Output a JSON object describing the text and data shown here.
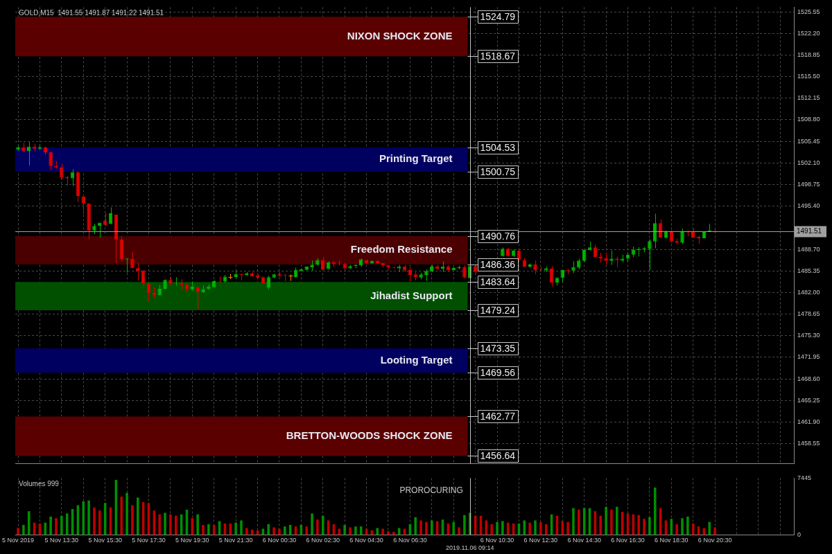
{
  "chart_data": [
    {
      "type": "candlestick",
      "title": "GOLD,M15  1491.55 1491.87 1491.22 1491.51",
      "categories": [
        "5 Nov 2019",
        null,
        null,
        null,
        null,
        null,
        null,
        null,
        "5 Nov 13:30",
        null,
        null,
        null,
        null,
        null,
        null,
        null,
        "5 Nov 15:30",
        null,
        null,
        null,
        null,
        null,
        null,
        null,
        "5 Nov 17:30",
        null,
        null,
        null,
        null,
        null,
        null,
        null,
        "5 Nov 19:30",
        null,
        null,
        null,
        null,
        null,
        null,
        null,
        "5 Nov 21:30",
        null,
        null,
        null,
        null,
        null,
        null,
        null,
        "6 Nov 00:30",
        null,
        null,
        null,
        null,
        null,
        null,
        null,
        "6 Nov 02:30",
        null,
        null,
        null,
        null,
        null,
        null,
        null,
        "6 Nov 04:30",
        null,
        null,
        null,
        null,
        null,
        null,
        null,
        "6 Nov 06:30",
        null,
        null,
        null,
        null,
        null,
        null,
        null,
        null,
        null,
        null,
        "2019.11.06 09:14",
        null,
        null,
        null,
        null,
        "6 Nov 10:30",
        null,
        null,
        null,
        null,
        null,
        null,
        null,
        "6 Nov 12:30",
        null,
        null,
        null,
        null,
        null,
        null,
        null,
        "6 Nov 14:30",
        null,
        null,
        null,
        null,
        null,
        null,
        null,
        "6 Nov 16:30",
        null,
        null,
        null,
        null,
        null,
        null,
        null,
        "6 Nov 18:30",
        null,
        null,
        null,
        null,
        null,
        null,
        null,
        "6 Nov 20:30",
        null,
        null,
        null,
        null,
        null,
        null,
        null,
        null,
        null,
        null,
        null,
        null,
        null,
        null
      ],
      "ohlc": [
        [
          1504.14,
          1504.7,
          1504.0,
          1504.56
        ],
        [
          1504.52,
          1505.25,
          1503.76,
          1503.9
        ],
        [
          1503.9,
          1505.35,
          1501.7,
          1504.63
        ],
        [
          1504.63,
          1505.08,
          1503.87,
          1504.32
        ],
        [
          1504.32,
          1504.97,
          1504.11,
          1504.52
        ],
        [
          1504.52,
          1504.66,
          1503.35,
          1503.76
        ],
        [
          1503.8,
          1503.8,
          1501.01,
          1501.63
        ],
        [
          1501.63,
          1502.39,
          1501.21,
          1501.42
        ],
        [
          1501.42,
          1501.97,
          1499.56,
          1499.83
        ],
        [
          1499.9,
          1500.08,
          1498.59,
          1499.73
        ],
        [
          1499.73,
          1501.11,
          1498.52,
          1500.7
        ],
        [
          1500.7,
          1500.77,
          1496.01,
          1496.97
        ],
        [
          1496.87,
          1496.87,
          1494.21,
          1495.83
        ],
        [
          1495.83,
          1495.83,
          1490.25,
          1491.63
        ],
        [
          1491.63,
          1492.66,
          1491.04,
          1492.32
        ],
        [
          1492.32,
          1492.83,
          1490.52,
          1492.83
        ],
        [
          1493.14,
          1494.39,
          1492.32,
          1492.49
        ],
        [
          1492.63,
          1495.21,
          1492.63,
          1494.28
        ],
        [
          1494.08,
          1494.08,
          1486.59,
          1490.25
        ],
        [
          1490.25,
          1490.77,
          1486.8,
          1487.14
        ],
        [
          1487.14,
          1487.28,
          1485.08,
          1487.28
        ],
        [
          1487.25,
          1488.32,
          1485.77,
          1485.77
        ],
        [
          1485.77,
          1486.63,
          1483.87,
          1485.35
        ],
        [
          1485.42,
          1485.49,
          1483.08,
          1483.42
        ],
        [
          1483.42,
          1483.42,
          1480.59,
          1481.97
        ],
        [
          1481.97,
          1482.8,
          1481.11,
          1481.56
        ],
        [
          1481.56,
          1483.15,
          1481.56,
          1482.59
        ],
        [
          1482.59,
          1484.04,
          1482.49,
          1483.94
        ],
        [
          1483.94,
          1484.45,
          1483.01,
          1483.42
        ],
        [
          1483.35,
          1484.39,
          1483.08,
          1483.42
        ],
        [
          1483.42,
          1484.04,
          1482.32,
          1483.18
        ],
        [
          1483.21,
          1483.42,
          1482.04,
          1482.49
        ],
        [
          1482.45,
          1483.7,
          1482.32,
          1482.9
        ],
        [
          1482.83,
          1482.9,
          1479.45,
          1482.08
        ],
        [
          1482.01,
          1483.11,
          1481.94,
          1482.52
        ],
        [
          1482.52,
          1483.25,
          1482.42,
          1482.94
        ],
        [
          1482.83,
          1483.87,
          1482.83,
          1483.76
        ],
        [
          1483.76,
          1484.46,
          1483.49,
          1483.7
        ],
        [
          1483.7,
          1484.73,
          1483.49,
          1484.46
        ],
        [
          1484.46,
          1484.87,
          1484.08,
          1484.46
        ],
        [
          1484.42,
          1485.42,
          1484.21,
          1484.87
        ],
        [
          1484.87,
          1484.87,
          1483.87,
          1484.73
        ],
        [
          1484.73,
          1485.18,
          1484.56,
          1485.01
        ],
        [
          1485.01,
          1485.18,
          1484.49,
          1484.49
        ],
        [
          1484.63,
          1484.8,
          1484.21,
          1484.32
        ],
        [
          1484.39,
          1484.46,
          1483.39,
          1483.39
        ],
        [
          1482.73,
          1484.63,
          1482.49,
          1484.39
        ],
        [
          1484.32,
          1484.9,
          1484.21,
          1484.8
        ],
        [
          1484.8,
          1485.25,
          1484.39,
          1484.56
        ],
        [
          1484.7,
          1484.9,
          1483.76,
          1484.63
        ],
        [
          1484.66,
          1484.8,
          1483.8,
          1484.66
        ],
        [
          1484.42,
          1485.87,
          1484.32,
          1485.52
        ],
        [
          1485.35,
          1485.76,
          1485.25,
          1485.63
        ],
        [
          1485.52,
          1486.01,
          1485.42,
          1486.01
        ],
        [
          1485.9,
          1486.97,
          1485.35,
          1486.32
        ],
        [
          1486.28,
          1487.32,
          1486.18,
          1487.04
        ],
        [
          1487.04,
          1487.52,
          1485.52,
          1485.59
        ],
        [
          1485.66,
          1486.83,
          1485.52,
          1486.73
        ],
        [
          1486.73,
          1486.9,
          1485.94,
          1486.39
        ],
        [
          1486.63,
          1486.97,
          1486.21,
          1486.56
        ],
        [
          1486.42,
          1486.63,
          1485.52,
          1485.76
        ],
        [
          1485.76,
          1486.28,
          1485.66,
          1486.11
        ],
        [
          1486.11,
          1486.39,
          1485.76,
          1486.25
        ],
        [
          1486.21,
          1487.28,
          1486.01,
          1487.14
        ],
        [
          1487.04,
          1487.14,
          1486.49,
          1486.49
        ],
        [
          1486.49,
          1486.97,
          1486.42,
          1486.9
        ],
        [
          1486.9,
          1487.04,
          1486.49,
          1486.56
        ],
        [
          1486.56,
          1486.56,
          1485.87,
          1486.21
        ],
        [
          1486.21,
          1486.28,
          1485.66,
          1485.87
        ],
        [
          1485.94,
          1486.01,
          1485.73,
          1485.83
        ],
        [
          1485.76,
          1486.28,
          1485.18,
          1486.04
        ],
        [
          1486.04,
          1486.28,
          1485.18,
          1485.42
        ],
        [
          1485.49,
          1485.94,
          1483.7,
          1484.73
        ],
        [
          1484.8,
          1485.18,
          1483.87,
          1484.39
        ],
        [
          1484.32,
          1485.08,
          1484.04,
          1484.8
        ],
        [
          1484.73,
          1485.59,
          1483.8,
          1485.35
        ],
        [
          1485.25,
          1486.28,
          1485.18,
          1486.01
        ],
        [
          1486.01,
          1486.28,
          1485.52,
          1485.66
        ],
        [
          1485.66,
          1486.8,
          1485.18,
          1486.04
        ],
        [
          1486.04,
          1486.28,
          1485.18,
          1485.42
        ],
        [
          1485.46,
          1485.94,
          1485.35,
          1485.8
        ],
        [
          1485.8,
          1486.18,
          1485.59,
          1485.9
        ],
        [
          1485.94,
          1486.28,
          1484.21,
          1484.32
        ],
        [
          1484.21,
          1486.11,
          1484.14,
          1486.11
        ],
        [
          1486.01,
          1486.28,
          1484.97,
          1485.18
        ],
        null,
        null,
        null,
        null,
        [
          1487.66,
          1488.97,
          1487.59,
          1488.8
        ],
        [
          1488.8,
          1488.9,
          1487.56,
          1487.66
        ],
        [
          1487.66,
          1488.7,
          1487.56,
          1488.52
        ],
        [
          1488.52,
          1488.63,
          1486.9,
          1487.04
        ],
        [
          1487.04,
          1487.39,
          1485.94,
          1486.01
        ],
        [
          1486.01,
          1486.49,
          1485.87,
          1486.35
        ],
        [
          1486.39,
          1486.97,
          1484.83,
          1485.42
        ],
        [
          1485.63,
          1485.94,
          1485.25,
          1485.56
        ],
        [
          1485.42,
          1486.01,
          1485.18,
          1485.76
        ],
        [
          1485.7,
          1486.11,
          1482.94,
          1483.53
        ],
        [
          1483.53,
          1484.39,
          1483.11,
          1484.28
        ],
        [
          1484.28,
          1485.49,
          1483.6,
          1485.49
        ],
        [
          1485.49,
          1485.7,
          1484.84,
          1485.39
        ],
        [
          1485.39,
          1486.87,
          1485.01,
          1485.94
        ],
        [
          1485.87,
          1487.25,
          1485.59,
          1486.97
        ],
        [
          1486.9,
          1488.63,
          1486.8,
          1488.63
        ],
        [
          1488.56,
          1489.91,
          1488.56,
          1489.01
        ],
        [
          1489.01,
          1489.46,
          1487.53,
          1487.53
        ],
        [
          1487.59,
          1488.18,
          1486.63,
          1487.32
        ],
        [
          1487.35,
          1488.18,
          1486.35,
          1486.9
        ],
        [
          1486.9,
          1488.53,
          1486.28,
          1487.25
        ],
        [
          1487.25,
          1487.59,
          1485.94,
          1487.04
        ],
        [
          1486.97,
          1487.9,
          1486.7,
          1487.25
        ],
        [
          1487.25,
          1488.18,
          1486.7,
          1487.87
        ],
        [
          1487.87,
          1489.15,
          1487.49,
          1488.63
        ],
        [
          1488.59,
          1489.04,
          1487.59,
          1488.77
        ],
        [
          1488.7,
          1489.04,
          1488.25,
          1488.87
        ],
        [
          1488.77,
          1490.25,
          1485.53,
          1489.97
        ],
        [
          1489.91,
          1494.22,
          1488.87,
          1492.77
        ],
        [
          1492.77,
          1493.35,
          1490.53,
          1490.53
        ],
        [
          1490.53,
          1491.63,
          1490.32,
          1491.53
        ],
        [
          1491.53,
          1491.66,
          1489.73,
          1489.91
        ],
        [
          1489.97,
          1490.35,
          1489.49,
          1489.73
        ],
        [
          1489.73,
          1491.91,
          1489.56,
          1491.39
        ],
        [
          1491.46,
          1491.63,
          1490.7,
          1491.35
        ],
        [
          1491.39,
          1491.91,
          1490.53,
          1490.53
        ],
        [
          1490.66,
          1490.84,
          1489.56,
          1490.42
        ],
        [
          1490.42,
          1491.46,
          1490.42,
          1491.39
        ],
        [
          1491.39,
          1492.66,
          1491.39,
          1491.6
        ],
        [
          1491.55,
          1491.87,
          1491.22,
          1491.51
        ],
        null,
        null,
        null,
        null,
        null,
        null,
        null,
        null,
        null,
        null,
        null,
        null,
        null,
        null
      ],
      "colors": [
        "#00b400",
        "#e00000",
        "#00b400",
        "#e00000",
        "#00b400",
        "#e00000",
        "#e00000",
        "#e00000",
        "#e00000",
        "#e00000",
        "#00b400",
        "#e00000",
        "#e00000",
        "#e00000",
        "#00b400",
        "#00b400",
        "#e00000",
        "#00b400",
        "#e00000",
        "#e00000",
        "#00b400",
        "#e00000",
        "#e00000",
        "#e00000",
        "#e00000",
        "#e00000",
        "#00b400",
        "#00b400",
        "#e00000",
        "#00b400",
        "#e00000",
        "#e00000",
        "#00b400",
        "#e00000",
        "#00b400",
        "#00b400",
        "#00b400",
        "#e00000",
        "#00b400",
        "#ff8000",
        "#00b400",
        "#e00000",
        "#00b400",
        "#e00000",
        "#e00000",
        "#e00000",
        "#00b400",
        "#00b400",
        "#e00000",
        "#e00000",
        "#ff8000",
        "#00b400",
        "#00b400",
        "#00b400",
        "#00b400",
        "#00b400",
        "#e00000",
        "#00b400",
        "#e00000",
        "#e00000",
        "#e00000",
        "#00b400",
        "#00b400",
        "#00b400",
        "#e00000",
        "#00b400",
        "#e00000",
        "#e00000",
        "#e00000",
        "#e00000",
        "#00b400",
        "#e00000",
        "#e00000",
        "#e00000",
        "#00b400",
        "#00b400",
        "#00b400",
        "#e00000",
        "#00b400",
        "#e00000",
        "#00b400",
        "#00b400",
        "#e00000",
        "#00b400",
        "#e00000",
        null,
        null,
        null,
        null,
        "#00b400",
        "#e00000",
        "#00b400",
        "#e00000",
        "#e00000",
        "#00b400",
        "#e00000",
        "#e00000",
        "#00b400",
        "#e00000",
        "#00b400",
        "#00b400",
        "#e00000",
        "#00b400",
        "#00b400",
        "#00b400",
        "#00b400",
        "#e00000",
        "#e00000",
        "#e00000",
        "#00b400",
        "#e00000",
        "#00b400",
        "#00b400",
        "#00b400",
        "#00b400",
        "#00b400",
        "#00b400",
        "#00b400",
        "#e00000",
        "#00b400",
        "#e00000",
        "#e00000",
        "#00b400",
        "#e00000",
        "#e00000",
        "#e00000",
        "#00b400",
        "#00b400",
        "#e00000",
        null,
        null,
        null,
        null,
        null,
        null,
        null,
        null,
        null,
        null,
        null,
        null,
        null,
        null
      ],
      "ylim": [
        1455.44,
        1526.27
      ],
      "yticks": [
        1458.55,
        {
          "value": 1461.9,
          "label": "1461.90"
        },
        1465.25,
        {
          "value": 1468.6,
          "label": "1468.60"
        },
        1471.95,
        {
          "value": 1475.3,
          "label": "1475.30"
        },
        1478.65,
        {
          "value": 1482.0,
          "label": "1482.00"
        },
        1485.35,
        {
          "value": 1488.7,
          "label": "1488.70"
        },
        {
          "value": 1495.4,
          "label": "1495.40"
        },
        1498.75,
        {
          "value": 1502.1,
          "label": "1502.10"
        },
        1505.45,
        {
          "value": 1508.8,
          "label": "1508.80"
        },
        1512.15,
        {
          "value": 1515.5,
          "label": "1515.50"
        },
        1518.85,
        {
          "value": 1522.2,
          "label": "1522.20"
        },
        1525.55
      ],
      "tick_labels": "y",
      "grid": true,
      "annotations": [
        "1524.79",
        "1518.67",
        "1504.53",
        "1500.75",
        "1490.76",
        "1486.36",
        "1483.64",
        "1479.24",
        "1473.35",
        "1469.56",
        "1462.77",
        "1456.64"
      ],
      "bands": [
        {
          "axis": "y",
          "from": 1518.67,
          "to": 1524.79,
          "label": "NIXON SHOCK ZONE",
          "color": "#5a0000"
        },
        {
          "axis": "y",
          "from": 1500.75,
          "to": 1504.53,
          "label": "Printing Target",
          "color": "#000060"
        },
        {
          "axis": "y",
          "from": 1486.36,
          "to": 1490.76,
          "label": "Freedom Resistance",
          "color": "#4a0000"
        },
        {
          "axis": "y",
          "from": 1479.24,
          "to": 1483.64,
          "label": "Jihadist Support",
          "color": "#005000"
        },
        {
          "axis": "y",
          "from": 1469.56,
          "to": 1473.35,
          "label": "Looting Target",
          "color": "#000060"
        },
        {
          "axis": "y",
          "from": 1456.64,
          "to": 1462.77,
          "label": "BRETTON-WOODS SHOCK ZONE",
          "color": "#5a0000"
        }
      ],
      "ref_lines": [
        {
          "axis": "y",
          "value": 1491.51,
          "label": "1491.51",
          "color": "#a0a0a0"
        },
        {
          "axis": "x",
          "value": "2019.11.06 09:14",
          "label": null,
          "color": "#c0c0c0"
        }
      ]
    },
    {
      "type": "bar",
      "title": "Volumes 999",
      "annotations": [
        "PROROCURING"
      ],
      "categories": [
        "5 Nov 2019",
        null,
        null,
        null,
        null,
        null,
        null,
        null,
        "5 Nov 13:30",
        null,
        null,
        null,
        null,
        null,
        null,
        null,
        "5 Nov 15:30",
        null,
        null,
        null,
        null,
        null,
        null,
        null,
        "5 Nov 17:30",
        null,
        null,
        null,
        null,
        null,
        null,
        null,
        "5 Nov 19:30",
        null,
        null,
        null,
        null,
        null,
        null,
        null,
        "5 Nov 21:30",
        null,
        null,
        null,
        null,
        null,
        null,
        null,
        "6 Nov 00:30",
        null,
        null,
        null,
        null,
        null,
        null,
        null,
        "6 Nov 02:30",
        null,
        null,
        null,
        null,
        null,
        null,
        null,
        "6 Nov 04:30",
        null,
        null,
        null,
        null,
        null,
        null,
        null,
        "6 Nov 06:30",
        null,
        null,
        null,
        null,
        null,
        null,
        null,
        null,
        null,
        null,
        "2019.11.06 09:14",
        null,
        null,
        null,
        null,
        "6 Nov 10:30",
        null,
        null,
        null,
        null,
        null,
        null,
        null,
        "6 Nov 12:30",
        null,
        null,
        null,
        null,
        null,
        null,
        null,
        "6 Nov 14:30",
        null,
        null,
        null,
        null,
        null,
        null,
        null,
        "6 Nov 16:30",
        null,
        null,
        null,
        null,
        null,
        null,
        null,
        "6 Nov 18:30",
        null,
        null,
        null,
        null,
        null,
        null,
        null,
        "6 Nov 20:30",
        null,
        null,
        null,
        null,
        null,
        null,
        null,
        null,
        null,
        null,
        null,
        null,
        null,
        null
      ],
      "values": [
        900,
        1300,
        3100,
        1600,
        1500,
        1600,
        2400,
        2200,
        2500,
        2800,
        3400,
        3900,
        4400,
        4500,
        3600,
        3200,
        4200,
        3600,
        7200,
        5000,
        5500,
        3900,
        4900,
        4300,
        4200,
        3200,
        2700,
        2900,
        2700,
        2500,
        2700,
        3300,
        2200,
        2700,
        1300,
        1400,
        1300,
        1800,
        1500,
        1500,
        1600,
        1900,
        900,
        700,
        600,
        800,
        1400,
        1000,
        800,
        1100,
        1300,
        1100,
        1300,
        1100,
        2800,
        2000,
        2500,
        1900,
        1400,
        800,
        1300,
        1000,
        1100,
        1100,
        800,
        600,
        900,
        800,
        500,
        400,
        900,
        800,
        1400,
        2300,
        1900,
        1700,
        1900,
        1800,
        2000,
        1500,
        1700,
        1000,
        2600,
        2900,
        2500,
        2500,
        1900,
        1400,
        1700,
        1800,
        1600,
        1500,
        1500,
        1900,
        1600,
        1900,
        1700,
        1400,
        2700,
        2500,
        1800,
        1700,
        3500,
        3300,
        3500,
        3500,
        3100,
        2500,
        3700,
        3300,
        3700,
        3000,
        2800,
        2700,
        2600,
        2100,
        2300,
        6200,
        3500,
        1900,
        2100,
        1400,
        2200,
        2400,
        1500,
        1100,
        900,
        1700,
        1000,
        null,
        null,
        null,
        null,
        null,
        null,
        null,
        null,
        null,
        null,
        null,
        null,
        null,
        null
      ],
      "colors": [
        "#c00000",
        "#009000",
        "#009000",
        "#c00000",
        "#c00000",
        "#009000",
        "#009000",
        "#c00000",
        "#009000",
        "#009000",
        "#009000",
        "#009000",
        "#009000",
        "#009000",
        "#c00000",
        "#c00000",
        "#009000",
        "#c00000",
        "#009000",
        "#c00000",
        "#009000",
        "#c00000",
        "#009000",
        "#c00000",
        "#c00000",
        "#c00000",
        "#c00000",
        "#009000",
        "#c00000",
        "#c00000",
        "#009000",
        "#009000",
        "#c00000",
        "#009000",
        "#c00000",
        "#009000",
        "#c00000",
        "#009000",
        "#c00000",
        "#c00000",
        "#009000",
        "#009000",
        "#c00000",
        "#c00000",
        "#c00000",
        "#009000",
        "#009000",
        "#c00000",
        "#c00000",
        "#009000",
        "#009000",
        "#c00000",
        "#009000",
        "#c00000",
        "#009000",
        "#c00000",
        "#009000",
        "#c00000",
        "#c00000",
        "#c00000",
        "#009000",
        "#c00000",
        "#009000",
        "#009000",
        "#c00000",
        "#c00000",
        "#009000",
        "#c00000",
        "#c00000",
        "#c00000",
        "#009000",
        "#c00000",
        "#009000",
        "#009000",
        "#c00000",
        "#c00000",
        "#009000",
        "#c00000",
        "#009000",
        "#c00000",
        "#009000",
        "#c00000",
        "#009000",
        "#009000",
        "#c00000",
        "#c00000",
        "#c00000",
        "#c00000",
        "#009000",
        "#009000",
        "#c00000",
        "#c00000",
        "#009000",
        "#009000",
        "#c00000",
        "#009000",
        "#c00000",
        "#c00000",
        "#009000",
        "#c00000",
        "#c00000",
        "#c00000",
        "#009000",
        "#c00000",
        "#009000",
        "#009000",
        "#c00000",
        "#c00000",
        "#009000",
        "#c00000",
        "#009000",
        "#c00000",
        "#c00000",
        "#c00000",
        "#c00000",
        "#c00000",
        "#009000",
        "#009000",
        "#c00000",
        "#c00000",
        "#009000",
        "#c00000",
        "#009000",
        "#009000",
        "#c00000",
        "#c00000",
        "#c00000",
        "#009000",
        "#c00000",
        null,
        null,
        null,
        null,
        null,
        null,
        null,
        null,
        null,
        null,
        null,
        null,
        null,
        null
      ],
      "ylim": [
        0,
        7445
      ],
      "yticks": [
        0,
        7445
      ],
      "grid": "x",
      "ref_lines": [
        {
          "axis": "x",
          "value": "2019.11.06 09:14",
          "label": null,
          "color": "#c0c0c0"
        }
      ]
    }
  ]
}
